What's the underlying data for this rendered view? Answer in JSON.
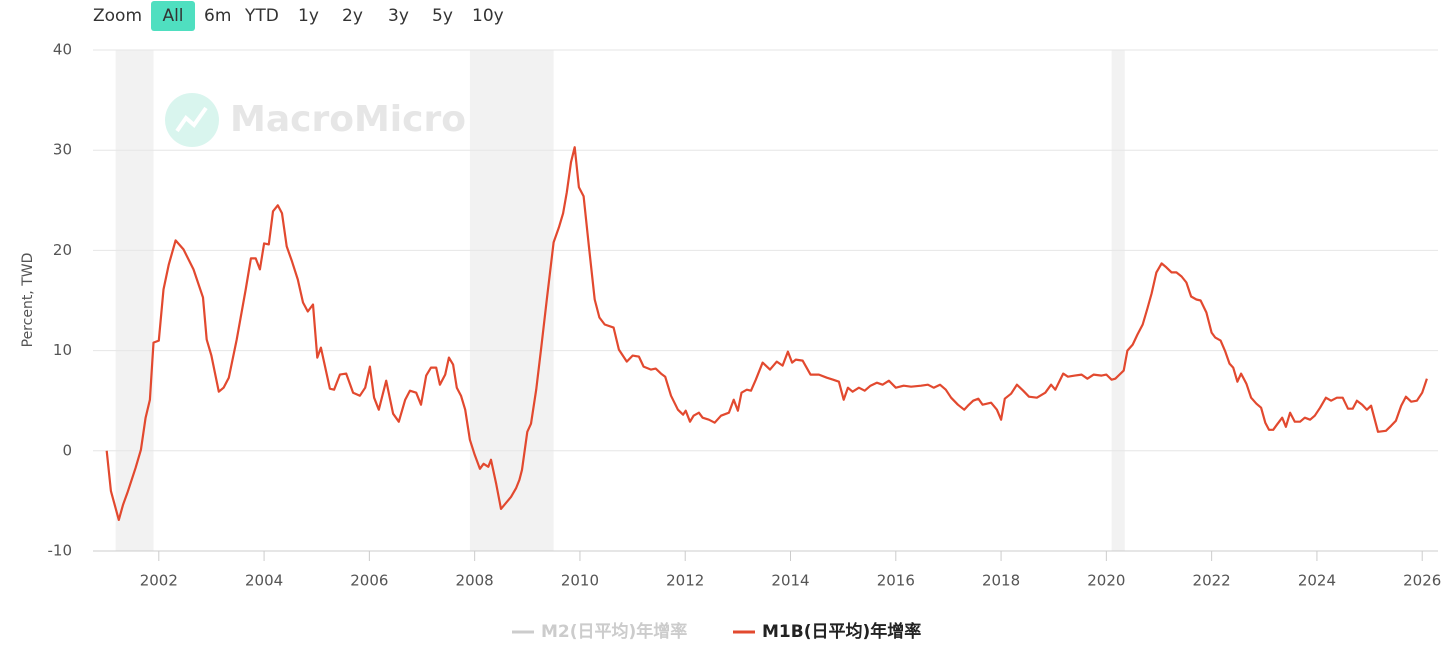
{
  "chart_data": {
    "type": "line",
    "range_selector": {
      "label": "Zoom",
      "buttons": [
        "All",
        "6m",
        "YTD",
        "1y",
        "2y",
        "3y",
        "5y",
        "10y"
      ],
      "selected": 0
    },
    "watermark": "MacroMicro",
    "y_label": "Percent, TWD",
    "xlim": [
      2000.75,
      2026.3
    ],
    "xticks": [
      2002,
      2004,
      2006,
      2008,
      2010,
      2012,
      2014,
      2016,
      2018,
      2020,
      2022,
      2024,
      2026
    ],
    "ylim": [
      -10,
      40
    ],
    "yticks": [
      -10,
      0,
      10,
      20,
      30,
      40
    ],
    "grid": true,
    "bands": [
      [
        2001.18,
        2001.9
      ],
      [
        2007.91,
        2009.5
      ],
      [
        2020.1,
        2020.35
      ]
    ],
    "band_color": "#f2f2f2",
    "hidden_series": [
      {
        "name": "M2(日平均)年增率",
        "color": "#cccccc"
      }
    ],
    "x": [
      2001.01,
      2001.09,
      2001.24,
      2001.32,
      2001.41,
      2001.56,
      2001.66,
      2001.75,
      2001.83,
      2001.9,
      2002.0,
      2002.09,
      2002.19,
      2002.32,
      2002.47,
      2002.66,
      2002.84,
      2002.91,
      2003.0,
      2003.14,
      2003.23,
      2003.33,
      2003.48,
      2003.65,
      2003.75,
      2003.84,
      2003.92,
      2004.0,
      2004.09,
      2004.17,
      2004.26,
      2004.34,
      2004.43,
      2004.53,
      2004.64,
      2004.74,
      2004.83,
      2004.93,
      2005.01,
      2005.08,
      2005.25,
      2005.33,
      2005.44,
      2005.56,
      2005.69,
      2005.82,
      2005.92,
      2006.01,
      2006.09,
      2006.18,
      2006.32,
      2006.45,
      2006.56,
      2006.68,
      2006.77,
      2006.89,
      2006.98,
      2007.08,
      2007.17,
      2007.27,
      2007.34,
      2007.44,
      2007.51,
      2007.59,
      2007.66,
      2007.74,
      2007.82,
      2007.91,
      2008.0,
      2008.1,
      2008.17,
      2008.26,
      2008.31,
      2008.41,
      2008.5,
      2008.69,
      2008.79,
      2008.85,
      2008.9,
      2009.0,
      2009.07,
      2009.17,
      2009.26,
      2009.37,
      2009.5,
      2009.6,
      2009.68,
      2009.75,
      2009.83,
      2009.9,
      2009.98,
      2010.07,
      2010.17,
      2010.28,
      2010.37,
      2010.47,
      2010.64,
      2010.74,
      2010.89,
      2011.0,
      2011.12,
      2011.21,
      2011.35,
      2011.44,
      2011.54,
      2011.62,
      2011.73,
      2011.86,
      2011.96,
      2012.01,
      2012.09,
      2012.16,
      2012.26,
      2012.33,
      2012.45,
      2012.56,
      2012.68,
      2012.83,
      2012.92,
      2013.0,
      2013.07,
      2013.17,
      2013.25,
      2013.34,
      2013.47,
      2013.61,
      2013.74,
      2013.85,
      2013.95,
      2014.03,
      2014.1,
      2014.23,
      2014.38,
      2014.54,
      2014.69,
      2014.81,
      2014.92,
      2015.01,
      2015.09,
      2015.18,
      2015.3,
      2015.41,
      2015.52,
      2015.64,
      2015.75,
      2015.87,
      2016.0,
      2016.15,
      2016.29,
      2016.48,
      2016.61,
      2016.72,
      2016.84,
      2016.95,
      2017.05,
      2017.18,
      2017.3,
      2017.37,
      2017.47,
      2017.57,
      2017.65,
      2017.81,
      2017.92,
      2018.0,
      2018.07,
      2018.19,
      2018.3,
      2018.42,
      2018.53,
      2018.68,
      2018.84,
      2018.95,
      2019.03,
      2019.18,
      2019.27,
      2019.4,
      2019.53,
      2019.64,
      2019.76,
      2019.91,
      2020.0,
      2020.1,
      2020.17,
      2020.25,
      2020.33,
      2020.4,
      2020.5,
      2020.59,
      2020.69,
      2020.78,
      2020.86,
      2020.95,
      2021.05,
      2021.14,
      2021.24,
      2021.33,
      2021.43,
      2021.52,
      2021.61,
      2021.71,
      2021.79,
      2021.9,
      2022.0,
      2022.07,
      2022.17,
      2022.26,
      2022.34,
      2022.41,
      2022.49,
      2022.56,
      2022.66,
      2022.75,
      2022.85,
      2022.94,
      2023.02,
      2023.09,
      2023.17,
      2023.24,
      2023.34,
      2023.41,
      2023.49,
      2023.58,
      2023.68,
      2023.77,
      2023.87,
      2023.96,
      2024.06,
      2024.17,
      2024.27,
      2024.38,
      2024.49,
      2024.59,
      2024.68,
      2024.76,
      2024.86,
      2024.95,
      2025.03,
      2025.16,
      2025.31,
      2025.41,
      2025.5,
      2025.6,
      2025.69,
      2025.79,
      2025.9,
      2026.0,
      2026.09
    ],
    "series": [
      {
        "name": "M1B(日平均)年增率",
        "color": "#e2492f",
        "values": [
          0,
          -4,
          -6.9,
          -5.4,
          -4.1,
          -1.7,
          0.1,
          3.3,
          5.1,
          10.8,
          11,
          16.1,
          18.6,
          21,
          20.1,
          18.1,
          15.3,
          11.1,
          9.5,
          5.9,
          6.3,
          7.3,
          11.1,
          16.1,
          19.2,
          19.2,
          18.1,
          20.7,
          20.6,
          23.9,
          24.5,
          23.7,
          20.4,
          18.9,
          17.1,
          14.8,
          13.9,
          14.6,
          9.3,
          10.3,
          6.2,
          6.1,
          7.6,
          7.7,
          5.8,
          5.5,
          6.3,
          8.4,
          5.3,
          4.1,
          7,
          3.7,
          2.9,
          5.1,
          6,
          5.8,
          4.6,
          7.5,
          8.3,
          8.3,
          6.6,
          7.6,
          9.3,
          8.6,
          6.3,
          5.5,
          4.1,
          1.1,
          -0.4,
          -1.8,
          -1.3,
          -1.6,
          -0.9,
          -3.3,
          -5.8,
          -4.6,
          -3.7,
          -2.9,
          -1.9,
          1.9,
          2.7,
          6.1,
          10.1,
          15.1,
          20.8,
          22.3,
          23.7,
          25.8,
          28.8,
          30.3,
          26.3,
          25.4,
          20.4,
          15.1,
          13.3,
          12.6,
          12.3,
          10.1,
          8.9,
          9.5,
          9.4,
          8.4,
          8.1,
          8.2,
          7.7,
          7.4,
          5.5,
          4.1,
          3.6,
          4,
          2.9,
          3.5,
          3.8,
          3.3,
          3.1,
          2.8,
          3.5,
          3.8,
          5.1,
          4,
          5.8,
          6.1,
          6,
          7.1,
          8.8,
          8.1,
          8.9,
          8.5,
          9.9,
          8.8,
          9.1,
          9,
          7.6,
          7.6,
          7.3,
          7.1,
          6.9,
          5.1,
          6.3,
          5.9,
          6.3,
          6,
          6.5,
          6.8,
          6.6,
          7,
          6.3,
          6.5,
          6.4,
          6.5,
          6.6,
          6.3,
          6.6,
          6.1,
          5.3,
          4.6,
          4.1,
          4.5,
          5,
          5.2,
          4.6,
          4.8,
          4.1,
          3.1,
          5.2,
          5.7,
          6.6,
          6,
          5.4,
          5.3,
          5.8,
          6.6,
          6.1,
          7.7,
          7.4,
          7.5,
          7.6,
          7.2,
          7.6,
          7.5,
          7.6,
          7.1,
          7.2,
          7.6,
          8,
          10,
          10.6,
          11.6,
          12.6,
          14.2,
          15.7,
          17.8,
          18.7,
          18.3,
          17.8,
          17.8,
          17.4,
          16.8,
          15.4,
          15.1,
          15,
          13.8,
          11.8,
          11.3,
          11,
          9.9,
          8.7,
          8.3,
          6.9,
          7.7,
          6.7,
          5.3,
          4.7,
          4.3,
          2.8,
          2.1,
          2.1,
          2.6,
          3.3,
          2.4,
          3.8,
          2.9,
          2.9,
          3.3,
          3.1,
          3.5,
          4.3,
          5.3,
          5,
          5.3,
          5.3,
          4.2,
          4.2,
          5,
          4.6,
          4.1,
          4.5,
          1.9,
          2,
          2.5,
          3,
          4.5,
          5.4,
          4.9,
          5,
          5.8,
          7.2
        ]
      }
    ]
  }
}
